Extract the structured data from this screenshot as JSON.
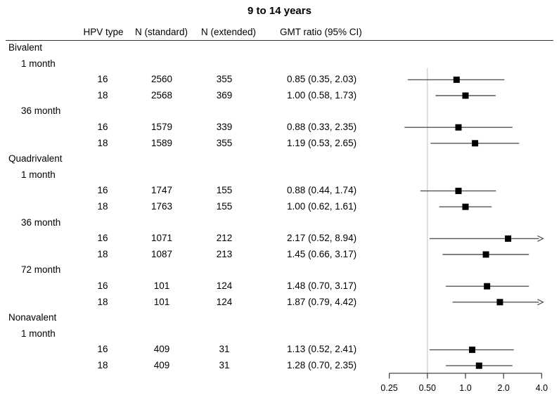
{
  "title": "9 to 14 years",
  "table": {
    "columns": [
      "HPV type",
      "N (standard)",
      "N (extended)",
      "GMT ratio (95% CI)"
    ]
  },
  "colors": {
    "text": "#000000",
    "marker": "#000000",
    "ci_line": "#555555",
    "axis": "#444444",
    "reference_line": "#c9c9c9",
    "header_rule": "#333333"
  },
  "chart_data": {
    "type": "forest",
    "title": "9 to 14 years",
    "xlabel": "",
    "x_scale": "log2",
    "xlim": [
      0.25,
      4.0
    ],
    "x_tick_values": [
      0.25,
      0.5,
      1.0,
      2.0,
      4.0
    ],
    "x_tick_labels": [
      "0.25",
      "0.50",
      "1.0",
      "2.0",
      "4.0"
    ],
    "reference_line_x": 0.5,
    "marker_shape": "square",
    "groups": [
      {
        "vaccine": "Bivalent",
        "timepoints": [
          {
            "label": "1 month",
            "rows": [
              {
                "hpv_type": "16",
                "n_standard": "2560",
                "n_extended": "355",
                "gmt_ratio": 0.85,
                "ci_low": 0.35,
                "ci_high": 2.03,
                "gmt_label": "0.85 (0.35, 2.03)"
              },
              {
                "hpv_type": "18",
                "n_standard": "2568",
                "n_extended": "369",
                "gmt_ratio": 1.0,
                "ci_low": 0.58,
                "ci_high": 1.73,
                "gmt_label": "1.00 (0.58, 1.73)"
              }
            ]
          },
          {
            "label": "36 month",
            "rows": [
              {
                "hpv_type": "16",
                "n_standard": "1579",
                "n_extended": "339",
                "gmt_ratio": 0.88,
                "ci_low": 0.33,
                "ci_high": 2.35,
                "gmt_label": "0.88 (0.33, 2.35)"
              },
              {
                "hpv_type": "18",
                "n_standard": "1589",
                "n_extended": "355",
                "gmt_ratio": 1.19,
                "ci_low": 0.53,
                "ci_high": 2.65,
                "gmt_label": "1.19 (0.53, 2.65)"
              }
            ]
          }
        ]
      },
      {
        "vaccine": "Quadrivalent",
        "timepoints": [
          {
            "label": "1 month",
            "rows": [
              {
                "hpv_type": "16",
                "n_standard": "1747",
                "n_extended": "155",
                "gmt_ratio": 0.88,
                "ci_low": 0.44,
                "ci_high": 1.74,
                "gmt_label": "0.88 (0.44, 1.74)"
              },
              {
                "hpv_type": "18",
                "n_standard": "1763",
                "n_extended": "155",
                "gmt_ratio": 1.0,
                "ci_low": 0.62,
                "ci_high": 1.61,
                "gmt_label": "1.00 (0.62, 1.61)"
              }
            ]
          },
          {
            "label": "36 month",
            "rows": [
              {
                "hpv_type": "16",
                "n_standard": "1071",
                "n_extended": "212",
                "gmt_ratio": 2.17,
                "ci_low": 0.52,
                "ci_high": 8.94,
                "gmt_label": "2.17 (0.52, 8.94)"
              },
              {
                "hpv_type": "18",
                "n_standard": "1087",
                "n_extended": "213",
                "gmt_ratio": 1.45,
                "ci_low": 0.66,
                "ci_high": 3.17,
                "gmt_label": "1.45 (0.66, 3.17)"
              }
            ]
          },
          {
            "label": "72 month",
            "rows": [
              {
                "hpv_type": "16",
                "n_standard": "101",
                "n_extended": "124",
                "gmt_ratio": 1.48,
                "ci_low": 0.7,
                "ci_high": 3.17,
                "gmt_label": "1.48 (0.70, 3.17)"
              },
              {
                "hpv_type": "18",
                "n_standard": "101",
                "n_extended": "124",
                "gmt_ratio": 1.87,
                "ci_low": 0.79,
                "ci_high": 4.42,
                "gmt_label": "1.87 (0.79, 4.42)"
              }
            ]
          }
        ]
      },
      {
        "vaccine": "Nonavalent",
        "timepoints": [
          {
            "label": "1 month",
            "rows": [
              {
                "hpv_type": "16",
                "n_standard": "409",
                "n_extended": "31",
                "gmt_ratio": 1.13,
                "ci_low": 0.52,
                "ci_high": 2.41,
                "gmt_label": "1.13 (0.52, 2.41)"
              },
              {
                "hpv_type": "18",
                "n_standard": "409",
                "n_extended": "31",
                "gmt_ratio": 1.28,
                "ci_low": 0.7,
                "ci_high": 2.35,
                "gmt_label": "1.28 (0.70, 2.35)"
              }
            ]
          }
        ]
      }
    ]
  }
}
